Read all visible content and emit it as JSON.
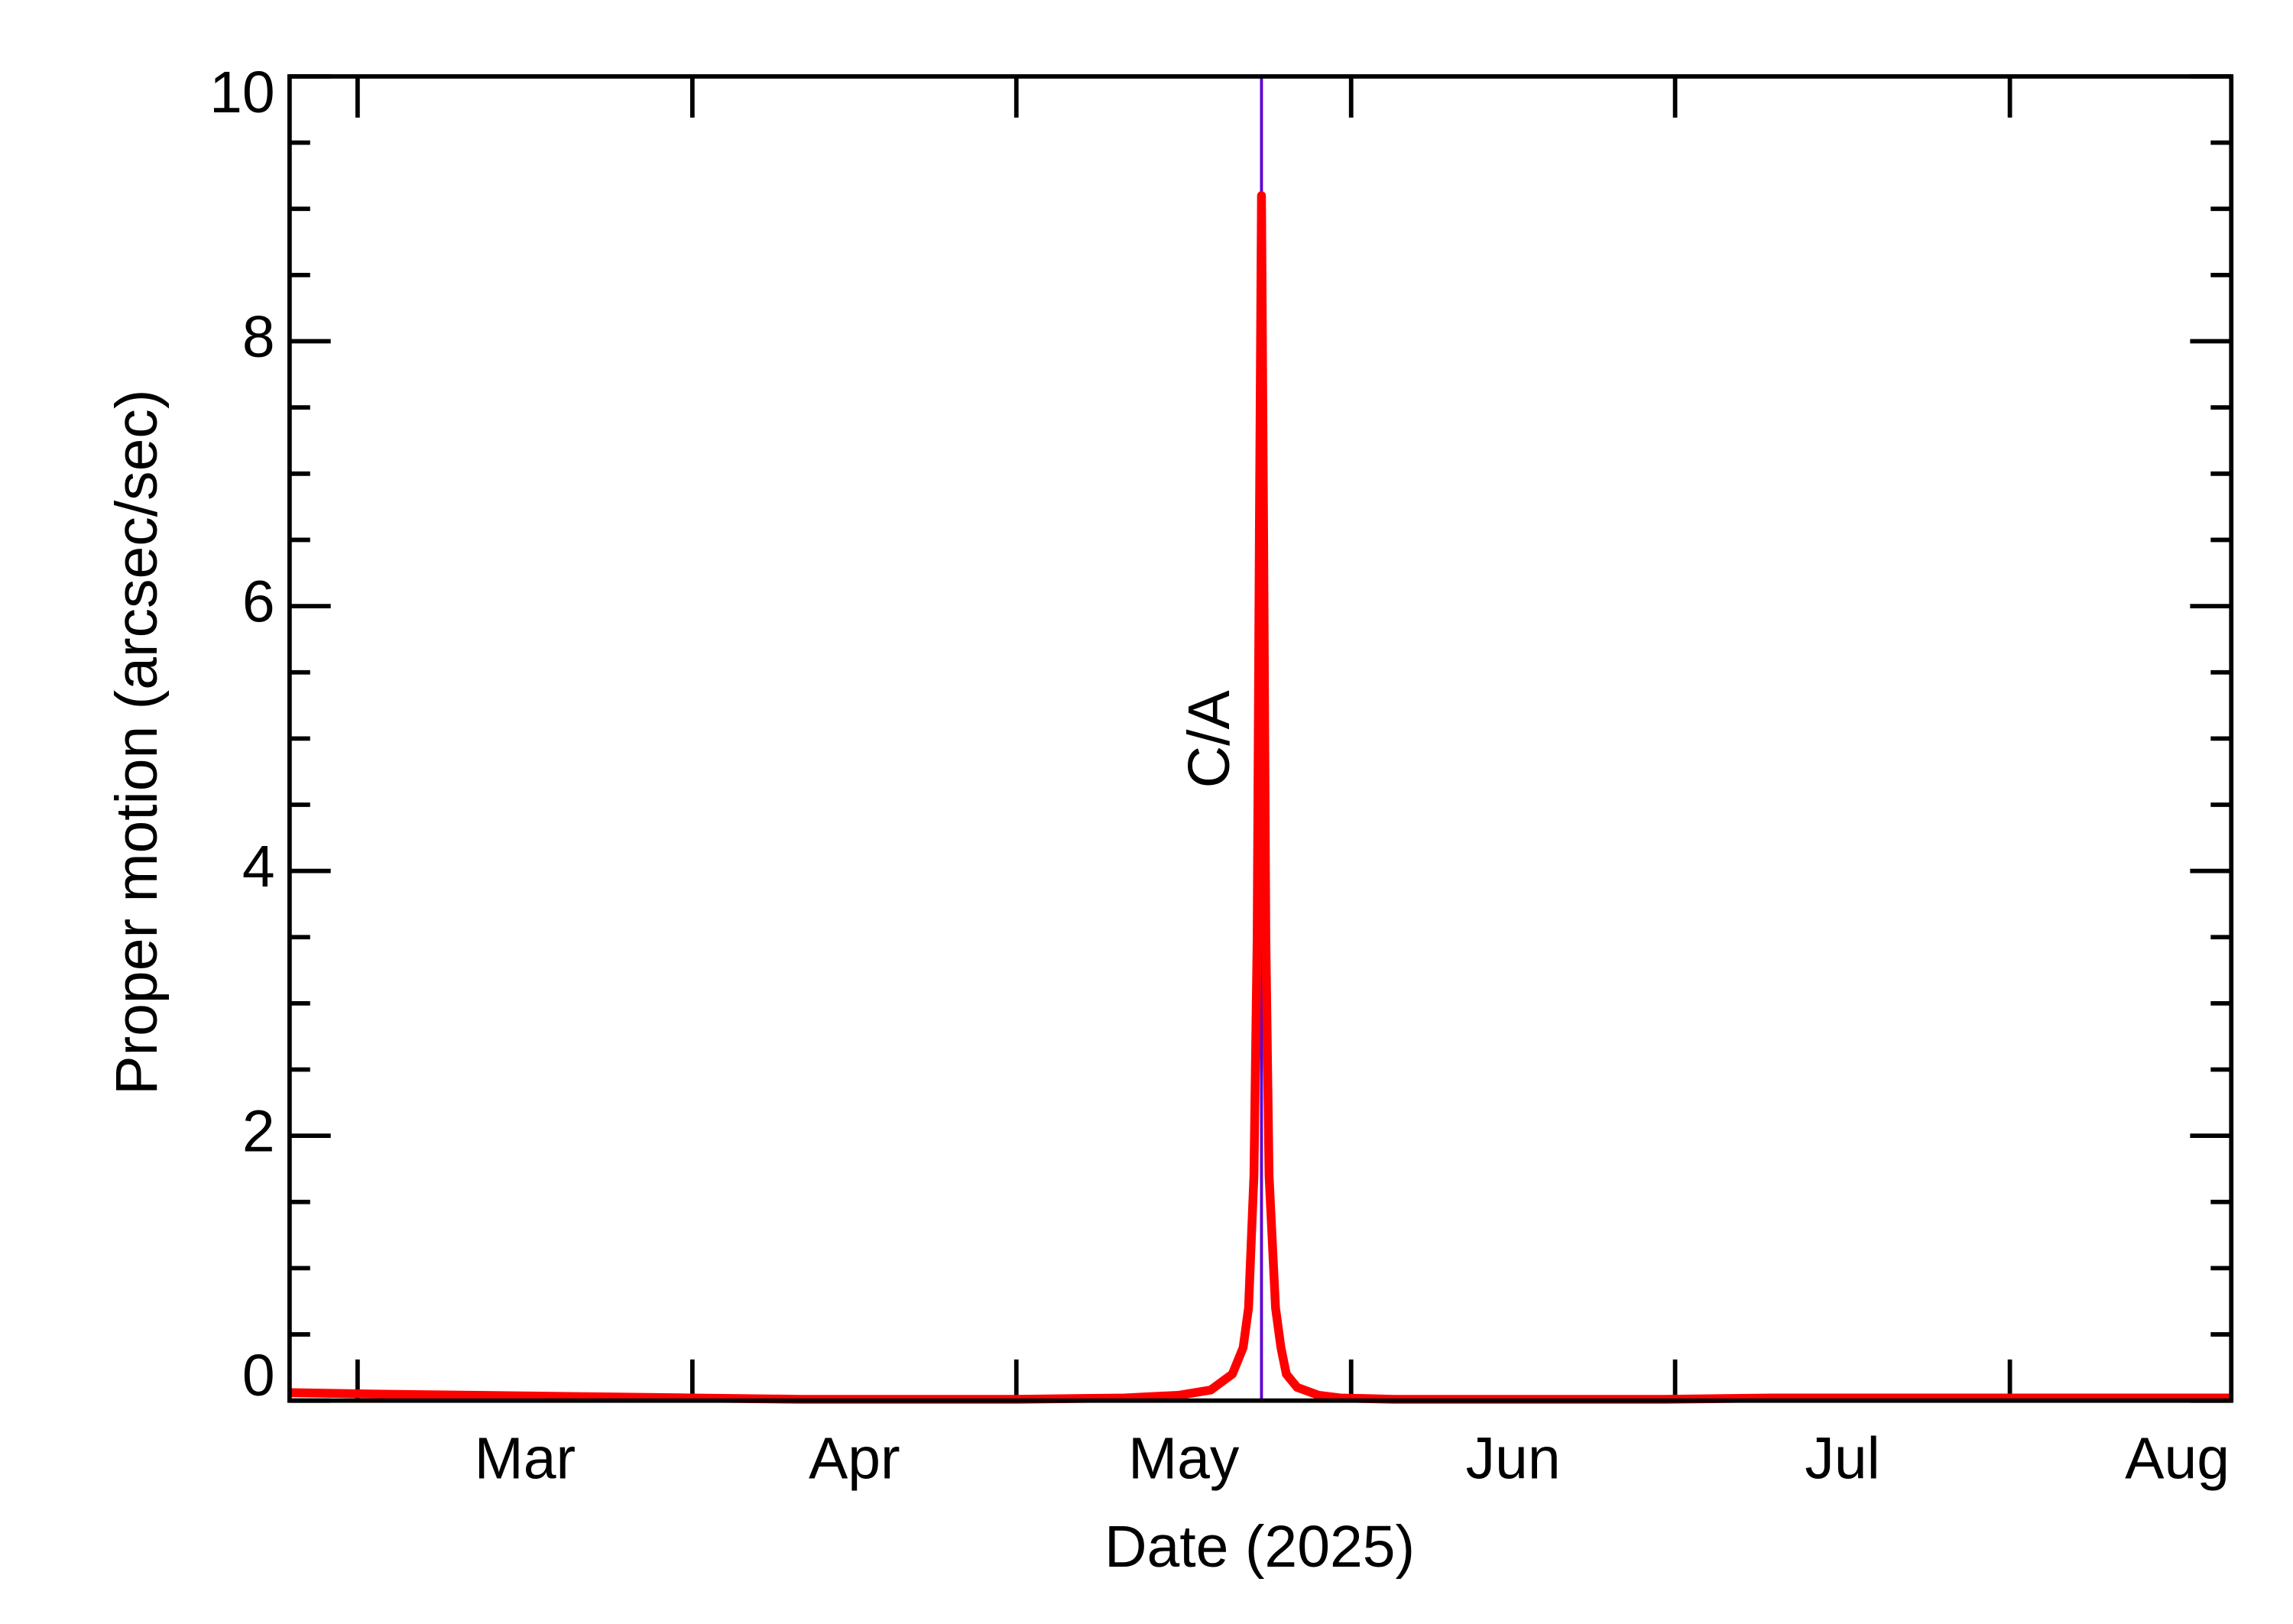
{
  "chart_data": {
    "type": "line",
    "xlabel": "Date (2025)",
    "ylabel": "Proper motion (arcsec/sec)",
    "annotation": {
      "text": "C/A",
      "x": 142.7,
      "color": "#5a00d0"
    },
    "x": [
      52.7,
      60,
      70,
      80,
      90,
      100,
      110,
      120,
      130,
      135,
      138,
      140,
      141,
      141.5,
      142,
      142.3,
      142.5,
      142.7,
      142.9,
      143.1,
      143.4,
      144,
      144.5,
      145,
      146,
      148,
      150,
      155,
      160,
      170,
      180,
      190,
      200,
      210,
      220,
      232.5
    ],
    "series": [
      {
        "color": "#ff0000",
        "values": [
          0.06,
          0.05,
          0.04,
          0.03,
          0.02,
          0.01,
          0.01,
          0.01,
          0.02,
          0.04,
          0.08,
          0.2,
          0.4,
          0.7,
          1.7,
          3.5,
          6.5,
          9.1,
          6.5,
          3.5,
          1.7,
          0.7,
          0.4,
          0.2,
          0.1,
          0.04,
          0.02,
          0.01,
          0.01,
          0.01,
          0.01,
          0.02,
          0.02,
          0.02,
          0.02,
          0.02
        ]
      }
    ],
    "xlim": [
      52.7,
      232.5
    ],
    "xticks": [
      {
        "value": 74.5,
        "label": "Mar"
      },
      {
        "value": 105,
        "label": "Apr"
      },
      {
        "value": 135.5,
        "label": "May"
      },
      {
        "value": 166,
        "label": "Jun"
      },
      {
        "value": 196.5,
        "label": "Jul"
      },
      {
        "value": 227.5,
        "label": "Aug"
      }
    ],
    "xtick_marks": [
      59,
      90,
      120,
      151,
      181,
      212
    ],
    "ylim": [
      0,
      10
    ],
    "yticks": [
      0,
      2,
      4,
      6,
      8,
      10
    ],
    "yminorticks": [
      0.5,
      1,
      1.5,
      2.5,
      3,
      3.5,
      4.5,
      5,
      5.5,
      6.5,
      7,
      7.5,
      8.5,
      9,
      9.5
    ],
    "grid": false
  }
}
